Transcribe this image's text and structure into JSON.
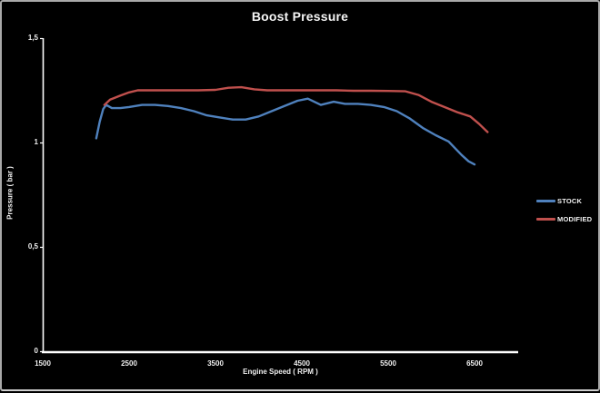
{
  "chart_data": {
    "type": "line",
    "title": "Boost Pressure",
    "xlabel": "Engine Speed ( RPM )",
    "ylabel": "Pressure ( bar )",
    "xlim": [
      1500,
      7000
    ],
    "ylim": [
      0,
      1.5
    ],
    "grid": false,
    "background_color": "#000000",
    "axis_color": "#ffffff",
    "text_color": "#efefef",
    "legend_position": "right-middle",
    "x_ticks": [
      {
        "value": 1500,
        "label": "1500"
      },
      {
        "value": 2500,
        "label": "2500"
      },
      {
        "value": 3500,
        "label": "3500"
      },
      {
        "value": 4500,
        "label": "4500"
      },
      {
        "value": 5500,
        "label": "5500"
      },
      {
        "value": 6500,
        "label": "6500"
      }
    ],
    "y_ticks": [
      {
        "value": 0,
        "label": "0"
      },
      {
        "value": 0.5,
        "label": "0,5"
      },
      {
        "value": 1,
        "label": "1"
      },
      {
        "value": 1.5,
        "label": "1,5"
      }
    ],
    "series": [
      {
        "name": "STOCK",
        "color": "#4f81bd",
        "points": [
          [
            2120,
            1.02
          ],
          [
            2160,
            1.1
          ],
          [
            2200,
            1.16
          ],
          [
            2235,
            1.18
          ],
          [
            2300,
            1.165
          ],
          [
            2400,
            1.165
          ],
          [
            2500,
            1.17
          ],
          [
            2650,
            1.18
          ],
          [
            2800,
            1.18
          ],
          [
            2950,
            1.175
          ],
          [
            3100,
            1.165
          ],
          [
            3250,
            1.15
          ],
          [
            3400,
            1.13
          ],
          [
            3550,
            1.12
          ],
          [
            3700,
            1.11
          ],
          [
            3850,
            1.11
          ],
          [
            4000,
            1.125
          ],
          [
            4150,
            1.15
          ],
          [
            4300,
            1.175
          ],
          [
            4450,
            1.2
          ],
          [
            4570,
            1.21
          ],
          [
            4720,
            1.18
          ],
          [
            4870,
            1.195
          ],
          [
            5000,
            1.185
          ],
          [
            5150,
            1.185
          ],
          [
            5300,
            1.18
          ],
          [
            5450,
            1.17
          ],
          [
            5600,
            1.15
          ],
          [
            5750,
            1.115
          ],
          [
            5900,
            1.07
          ],
          [
            6050,
            1.035
          ],
          [
            6200,
            1.005
          ],
          [
            6350,
            0.94
          ],
          [
            6430,
            0.91
          ],
          [
            6500,
            0.895
          ]
        ]
      },
      {
        "name": "MODIFIED",
        "color": "#c0504d",
        "points": [
          [
            2215,
            1.18
          ],
          [
            2280,
            1.205
          ],
          [
            2400,
            1.225
          ],
          [
            2500,
            1.24
          ],
          [
            2600,
            1.25
          ],
          [
            2750,
            1.25
          ],
          [
            2900,
            1.25
          ],
          [
            3100,
            1.25
          ],
          [
            3300,
            1.25
          ],
          [
            3500,
            1.252
          ],
          [
            3650,
            1.262
          ],
          [
            3800,
            1.265
          ],
          [
            3950,
            1.255
          ],
          [
            4100,
            1.25
          ],
          [
            4300,
            1.25
          ],
          [
            4500,
            1.25
          ],
          [
            4700,
            1.25
          ],
          [
            4900,
            1.25
          ],
          [
            5100,
            1.248
          ],
          [
            5300,
            1.248
          ],
          [
            5500,
            1.247
          ],
          [
            5700,
            1.245
          ],
          [
            5850,
            1.228
          ],
          [
            6000,
            1.195
          ],
          [
            6150,
            1.17
          ],
          [
            6300,
            1.145
          ],
          [
            6450,
            1.125
          ],
          [
            6550,
            1.09
          ],
          [
            6650,
            1.05
          ]
        ]
      }
    ]
  }
}
